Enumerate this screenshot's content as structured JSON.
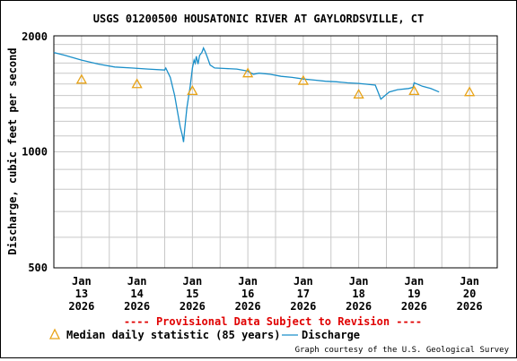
{
  "chart_data": {
    "type": "line",
    "title": "USGS 01200500 HOUSATONIC RIVER AT GAYLORDSVILLE, CT",
    "ylabel": "Discharge, cubic feet per second",
    "xlabel": "",
    "y_scale": "log",
    "ylim": [
      500,
      2000
    ],
    "y_ticks": [
      500,
      1000,
      2000
    ],
    "y_minor_ticks": [
      600,
      700,
      800,
      900,
      1100,
      1200,
      1300,
      1400,
      1500,
      1600,
      1700,
      1800,
      1900
    ],
    "x_ticks": [
      {
        "month": "Jan",
        "day": "13",
        "year": "2026",
        "t": 0
      },
      {
        "month": "Jan",
        "day": "14",
        "year": "2026",
        "t": 1
      },
      {
        "month": "Jan",
        "day": "15",
        "year": "2026",
        "t": 2
      },
      {
        "month": "Jan",
        "day": "16",
        "year": "2026",
        "t": 3
      },
      {
        "month": "Jan",
        "day": "17",
        "year": "2026",
        "t": 4
      },
      {
        "month": "Jan",
        "day": "18",
        "year": "2026",
        "t": 5
      },
      {
        "month": "Jan",
        "day": "19",
        "year": "2026",
        "t": 6
      },
      {
        "month": "Jan",
        "day": "20",
        "year": "2026",
        "t": 7
      }
    ],
    "xlim": [
      -0.5,
      7.5
    ],
    "grid": true,
    "series": [
      {
        "name": "Median daily statistic (85 years)",
        "marker": "triangle",
        "color": "#e8a317",
        "points": [
          {
            "t": 0,
            "y": 1540
          },
          {
            "t": 1,
            "y": 1500
          },
          {
            "t": 2,
            "y": 1440
          },
          {
            "t": 3,
            "y": 1600
          },
          {
            "t": 4,
            "y": 1530
          },
          {
            "t": 5,
            "y": 1410
          },
          {
            "t": 6,
            "y": 1440
          },
          {
            "t": 7,
            "y": 1430
          }
        ]
      },
      {
        "name": "Discharge",
        "marker": "line",
        "color": "#1a8fc9",
        "points": [
          {
            "t": -0.5,
            "y": 1810
          },
          {
            "t": -0.3,
            "y": 1780
          },
          {
            "t": 0.0,
            "y": 1730
          },
          {
            "t": 0.3,
            "y": 1690
          },
          {
            "t": 0.6,
            "y": 1660
          },
          {
            "t": 0.9,
            "y": 1650
          },
          {
            "t": 1.2,
            "y": 1640
          },
          {
            "t": 1.5,
            "y": 1630
          },
          {
            "t": 1.52,
            "y": 1650
          },
          {
            "t": 1.6,
            "y": 1560
          },
          {
            "t": 1.68,
            "y": 1400
          },
          {
            "t": 1.74,
            "y": 1250
          },
          {
            "t": 1.78,
            "y": 1160
          },
          {
            "t": 1.82,
            "y": 1100
          },
          {
            "t": 1.84,
            "y": 1060
          },
          {
            "t": 1.86,
            "y": 1140
          },
          {
            "t": 1.9,
            "y": 1300
          },
          {
            "t": 1.96,
            "y": 1480
          },
          {
            "t": 2.0,
            "y": 1650
          },
          {
            "t": 2.03,
            "y": 1730
          },
          {
            "t": 2.05,
            "y": 1700
          },
          {
            "t": 2.07,
            "y": 1770
          },
          {
            "t": 2.1,
            "y": 1690
          },
          {
            "t": 2.13,
            "y": 1780
          },
          {
            "t": 2.17,
            "y": 1810
          },
          {
            "t": 2.2,
            "y": 1860
          },
          {
            "t": 2.23,
            "y": 1820
          },
          {
            "t": 2.27,
            "y": 1760
          },
          {
            "t": 2.32,
            "y": 1680
          },
          {
            "t": 2.4,
            "y": 1650
          },
          {
            "t": 2.6,
            "y": 1645
          },
          {
            "t": 2.8,
            "y": 1640
          },
          {
            "t": 3.0,
            "y": 1620
          },
          {
            "t": 3.1,
            "y": 1590
          },
          {
            "t": 3.2,
            "y": 1600
          },
          {
            "t": 3.4,
            "y": 1590
          },
          {
            "t": 3.6,
            "y": 1570
          },
          {
            "t": 3.8,
            "y": 1560
          },
          {
            "t": 4.0,
            "y": 1545
          },
          {
            "t": 4.2,
            "y": 1535
          },
          {
            "t": 4.4,
            "y": 1525
          },
          {
            "t": 4.6,
            "y": 1520
          },
          {
            "t": 4.8,
            "y": 1510
          },
          {
            "t": 5.0,
            "y": 1505
          },
          {
            "t": 5.2,
            "y": 1495
          },
          {
            "t": 5.3,
            "y": 1490
          },
          {
            "t": 5.35,
            "y": 1430
          },
          {
            "t": 5.4,
            "y": 1370
          },
          {
            "t": 5.45,
            "y": 1390
          },
          {
            "t": 5.55,
            "y": 1430
          },
          {
            "t": 5.7,
            "y": 1450
          },
          {
            "t": 5.9,
            "y": 1460
          },
          {
            "t": 5.98,
            "y": 1470
          },
          {
            "t": 6.0,
            "y": 1510
          },
          {
            "t": 6.05,
            "y": 1500
          },
          {
            "t": 6.15,
            "y": 1480
          },
          {
            "t": 6.3,
            "y": 1460
          },
          {
            "t": 6.45,
            "y": 1430
          }
        ]
      }
    ],
    "provisional_note": "---- Provisional Data Subject to Revision ----",
    "credit": "Graph courtesy of the U.S. Geological Survey"
  }
}
